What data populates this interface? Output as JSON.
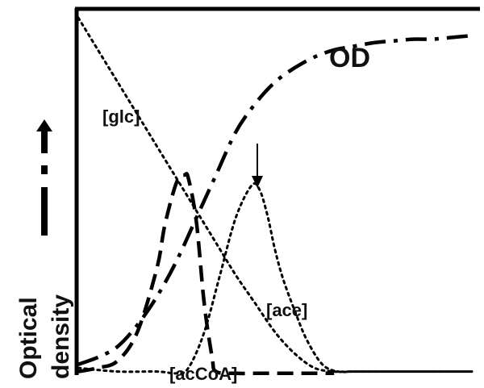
{
  "chart_data": {
    "type": "line",
    "title": "",
    "xlabel": "",
    "ylabel": "Optical density",
    "ylabel_lines": [
      "Optical",
      "density"
    ],
    "x": [
      0,
      5,
      10,
      15,
      20,
      25,
      30,
      35,
      40,
      45,
      50,
      55,
      60,
      65,
      70,
      75,
      80,
      85,
      90,
      95,
      100
    ],
    "xlim": [
      0,
      100
    ],
    "ylim": [
      0,
      100
    ],
    "grid": false,
    "legend": "none",
    "series": [
      {
        "name": "OD",
        "label": "OD",
        "style": "dash-dot",
        "values": [
          3,
          5,
          8,
          14,
          22,
          32,
          44,
          56,
          68,
          76,
          82,
          86,
          89,
          91,
          92,
          93,
          93.5,
          94,
          94,
          94.5,
          95
        ]
      },
      {
        "name": "[glc]",
        "label": "[glc]",
        "style": "dotted",
        "values": [
          100,
          91,
          82,
          73,
          64,
          55,
          46,
          37,
          28,
          20,
          12,
          6,
          2,
          1,
          1,
          1,
          1,
          1,
          1,
          1,
          1
        ]
      },
      {
        "name": "[acCoA]",
        "label": "[acCoA]",
        "style": "dashed",
        "x": [
          0,
          5,
          10,
          15,
          20,
          22,
          25,
          27,
          28,
          30,
          32,
          34,
          35,
          40,
          45,
          50,
          55,
          60,
          65
        ],
        "values": [
          1,
          2,
          4,
          12,
          30,
          42,
          54,
          56,
          55,
          43,
          20,
          5,
          1,
          0.5,
          0.5,
          0.5,
          0.5,
          0.5,
          0.5
        ]
      },
      {
        "name": "[ace]",
        "label": "[ace]",
        "style": "dotted",
        "x": [
          0,
          10,
          20,
          25,
          28,
          32,
          36,
          40,
          44,
          46,
          48,
          50,
          52,
          55,
          58,
          62,
          66,
          70,
          80,
          90,
          100
        ],
        "values": [
          2,
          1,
          1,
          0.5,
          2,
          12,
          28,
          44,
          53,
          52,
          45,
          35,
          27,
          18,
          10,
          3,
          1,
          1,
          1,
          1,
          1
        ]
      }
    ],
    "annotations": [
      {
        "type": "arrow-down",
        "x": 46,
        "y": 62,
        "label": ""
      }
    ],
    "axis_arrow": "up-arrow-with-dash-dot-marker"
  }
}
